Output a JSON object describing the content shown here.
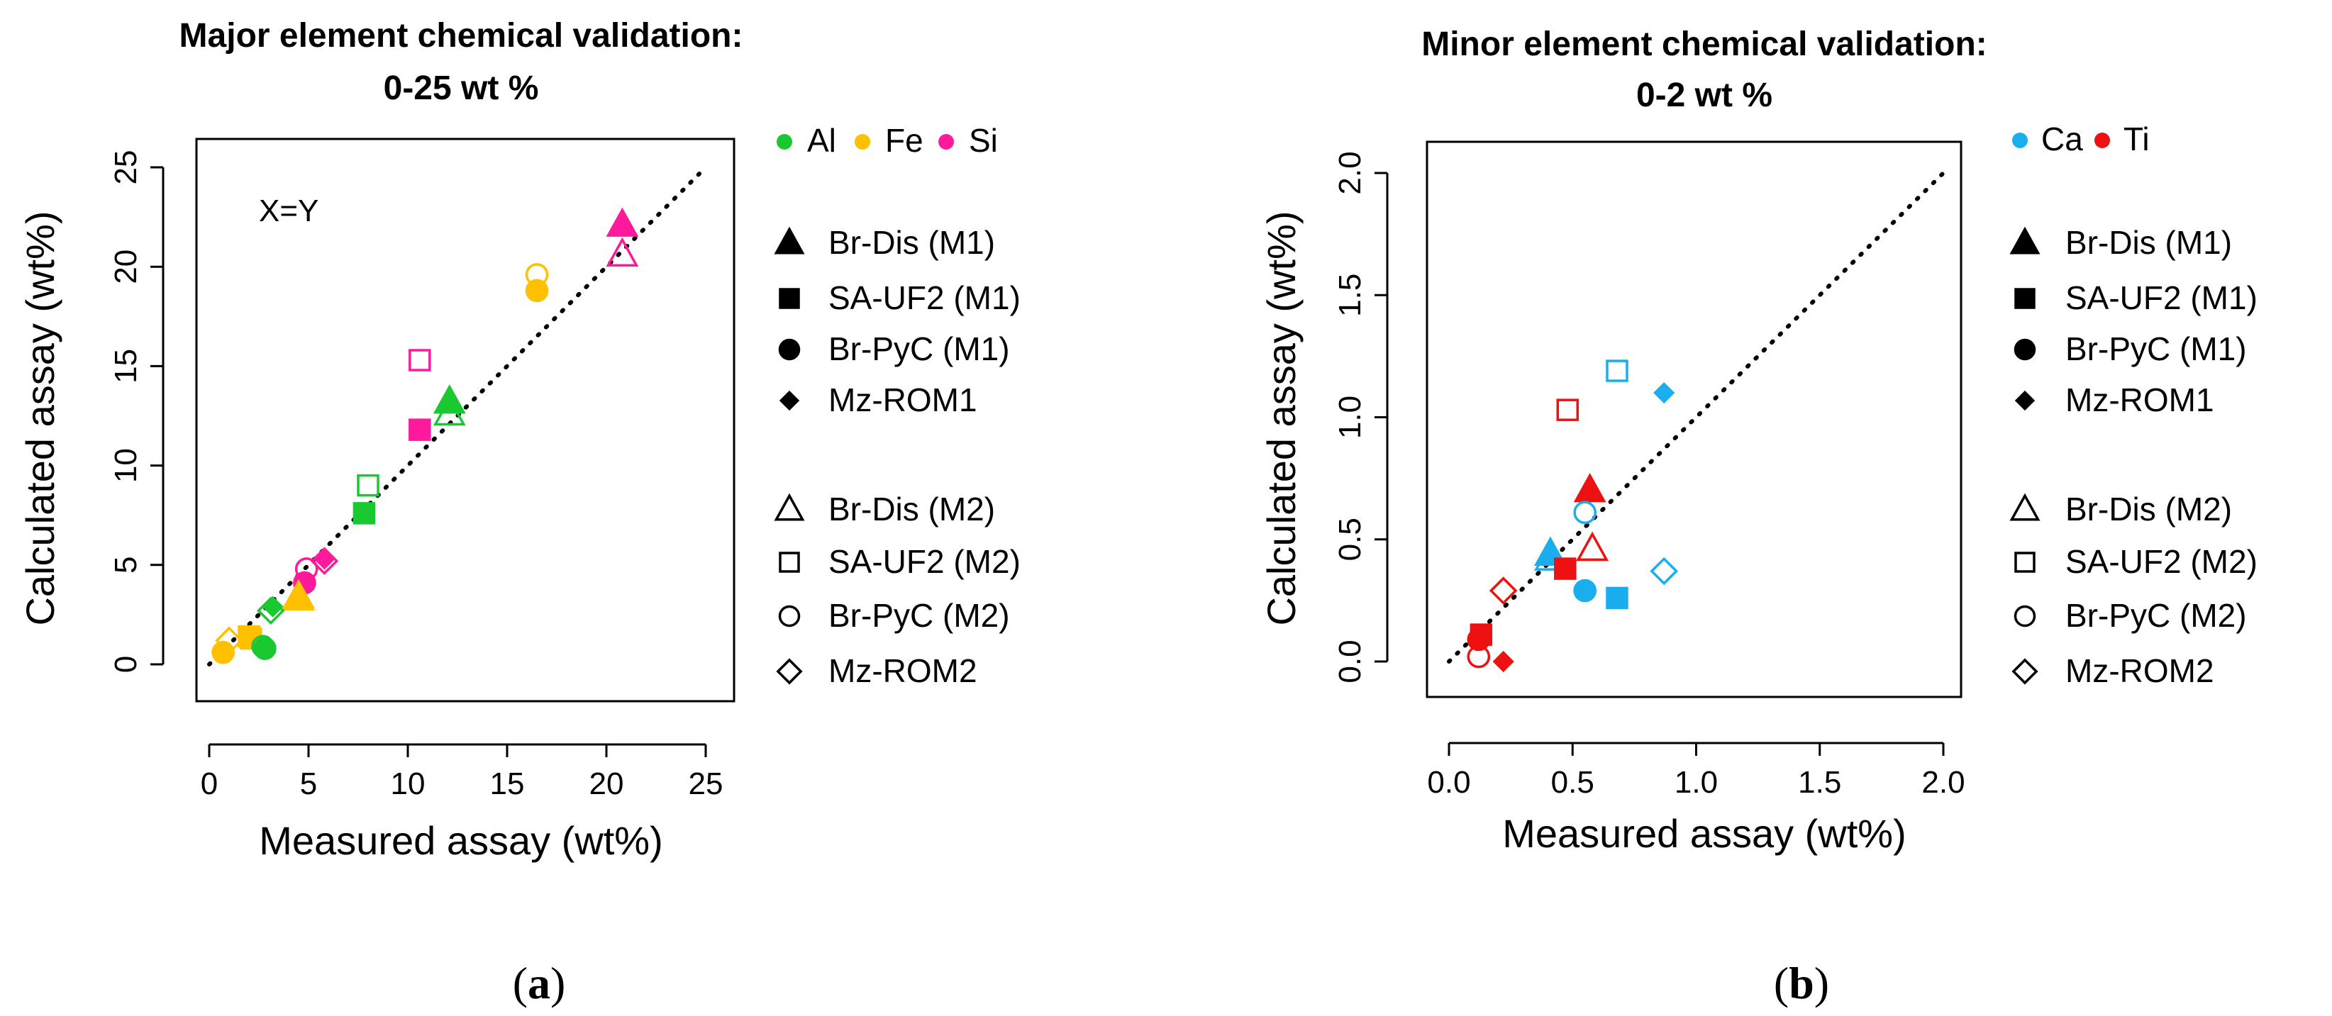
{
  "chart_data": [
    {
      "type": "scatter",
      "title": "Major element chemical validation:",
      "subtitle": "0-25 wt %",
      "xlabel": "Measured assay (wt%)",
      "ylabel": "Calculated assay (wt%)",
      "xlim": [
        0,
        25
      ],
      "ylim": [
        0,
        25
      ],
      "xticks": [
        "0",
        "5",
        "10",
        "15",
        "20",
        "25"
      ],
      "yticks": [
        "0",
        "5",
        "10",
        "15",
        "20",
        "25"
      ],
      "annotation": "X=Y",
      "caption_label": "a",
      "grid": false,
      "legend_position": "right",
      "element_legend": [
        {
          "name": "Al",
          "color": "#1ac832"
        },
        {
          "name": "Fe",
          "color": "#ffc000"
        },
        {
          "name": "Si",
          "color": "#ff1a9c"
        }
      ],
      "points": [
        {
          "element": "Si",
          "sample": "Br-Dis (M1)",
          "x": 20.8,
          "y": 22.1
        },
        {
          "element": "Si",
          "sample": "Br-Dis (M2)",
          "x": 20.8,
          "y": 20.6
        },
        {
          "element": "Fe",
          "sample": "Br-PyC (M2)",
          "x": 16.5,
          "y": 19.6
        },
        {
          "element": "Fe",
          "sample": "Br-PyC (M1)",
          "x": 16.5,
          "y": 18.8
        },
        {
          "element": "Si",
          "sample": "SA-UF2 (M2)",
          "x": 10.6,
          "y": 15.3
        },
        {
          "element": "Al",
          "sample": "Br-Dis (M1)",
          "x": 12.1,
          "y": 13.2
        },
        {
          "element": "Al",
          "sample": "Br-Dis (M2)",
          "x": 12.1,
          "y": 12.6
        },
        {
          "element": "Si",
          "sample": "SA-UF2 (M1)",
          "x": 10.6,
          "y": 11.8
        },
        {
          "element": "Al",
          "sample": "SA-UF2 (M2)",
          "x": 8.0,
          "y": 9.0
        },
        {
          "element": "Al",
          "sample": "SA-UF2 (M1)",
          "x": 7.8,
          "y": 7.6
        },
        {
          "element": "Si",
          "sample": "Mz-ROM1",
          "x": 5.8,
          "y": 5.3
        },
        {
          "element": "Si",
          "sample": "Mz-ROM2",
          "x": 5.8,
          "y": 5.2
        },
        {
          "element": "Si",
          "sample": "Br-PyC (M2)",
          "x": 4.9,
          "y": 4.8
        },
        {
          "element": "Si",
          "sample": "Br-PyC (M1)",
          "x": 4.8,
          "y": 4.1
        },
        {
          "element": "Fe",
          "sample": "Br-Dis (M1)",
          "x": 4.5,
          "y": 3.4
        },
        {
          "element": "Fe",
          "sample": "Br-Dis (M2)",
          "x": 4.5,
          "y": 3.3
        },
        {
          "element": "Al",
          "sample": "Mz-ROM1",
          "x": 3.2,
          "y": 2.9
        },
        {
          "element": "Al",
          "sample": "Mz-ROM2",
          "x": 3.1,
          "y": 2.7
        },
        {
          "element": "Fe",
          "sample": "SA-UF2 (M1)",
          "x": 2.0,
          "y": 1.4
        },
        {
          "element": "Fe",
          "sample": "SA-UF2 (M2)",
          "x": 2.1,
          "y": 1.3
        },
        {
          "element": "Fe",
          "sample": "Mz-ROM2",
          "x": 1.0,
          "y": 1.2
        },
        {
          "element": "Fe",
          "sample": "Br-PyC (M1)",
          "x": 0.7,
          "y": 0.6
        },
        {
          "element": "Al",
          "sample": "Br-PyC (M1)",
          "x": 2.8,
          "y": 0.8
        },
        {
          "element": "Al",
          "sample": "Br-PyC (M2)",
          "x": 2.7,
          "y": 0.9
        }
      ]
    },
    {
      "type": "scatter",
      "title": "Minor element chemical validation:",
      "subtitle": "0-2 wt %",
      "xlabel": "Measured assay (wt%)",
      "ylabel": "Calculated assay (wt%)",
      "xlim": [
        0,
        2
      ],
      "ylim": [
        0,
        2
      ],
      "xticks": [
        "0.0",
        "0.5",
        "1.0",
        "1.5",
        "2.0"
      ],
      "yticks": [
        "0.0",
        "0.5",
        "1.0",
        "1.5",
        "2.0"
      ],
      "caption_label": "b",
      "grid": false,
      "legend_position": "right",
      "element_legend": [
        {
          "name": "Ca",
          "color": "#1aaeee"
        },
        {
          "name": "Ti",
          "color": "#ee1111"
        }
      ],
      "points": [
        {
          "element": "Ca",
          "sample": "SA-UF2 (M2)",
          "x": 0.68,
          "y": 1.19
        },
        {
          "element": "Ca",
          "sample": "Mz-ROM1",
          "x": 0.87,
          "y": 1.1
        },
        {
          "element": "Ti",
          "sample": "SA-UF2 (M2)",
          "x": 0.48,
          "y": 1.03
        },
        {
          "element": "Ti",
          "sample": "Br-Dis (M1)",
          "x": 0.57,
          "y": 0.7
        },
        {
          "element": "Ca",
          "sample": "Br-PyC (M2)",
          "x": 0.55,
          "y": 0.61
        },
        {
          "element": "Ti",
          "sample": "Br-Dis (M2)",
          "x": 0.58,
          "y": 0.46
        },
        {
          "element": "Ca",
          "sample": "Br-Dis (M1)",
          "x": 0.41,
          "y": 0.44
        },
        {
          "element": "Ca",
          "sample": "Br-Dis (M2)",
          "x": 0.41,
          "y": 0.42
        },
        {
          "element": "Ti",
          "sample": "SA-UF2 (M1)",
          "x": 0.47,
          "y": 0.38
        },
        {
          "element": "Ca",
          "sample": "Mz-ROM2",
          "x": 0.87,
          "y": 0.37
        },
        {
          "element": "Ca",
          "sample": "Br-PyC (M1)",
          "x": 0.55,
          "y": 0.29
        },
        {
          "element": "Ti",
          "sample": "Mz-ROM2",
          "x": 0.22,
          "y": 0.29
        },
        {
          "element": "Ca",
          "sample": "SA-UF2 (M1)",
          "x": 0.68,
          "y": 0.26
        },
        {
          "element": "Ti",
          "sample": "SA-UF2 (M1)",
          "x": 0.13,
          "y": 0.11
        },
        {
          "element": "Ti",
          "sample": "Br-PyC (M1)",
          "x": 0.12,
          "y": 0.09
        },
        {
          "element": "Ti",
          "sample": "Br-PyC (M2)",
          "x": 0.12,
          "y": 0.02
        },
        {
          "element": "Ti",
          "sample": "Mz-ROM1",
          "x": 0.22,
          "y": 0.0
        }
      ]
    }
  ],
  "sample_legend": [
    {
      "label": "Br-Dis (M1)",
      "shape": "triangle",
      "filled": true
    },
    {
      "label": "SA-UF2 (M1)",
      "shape": "square",
      "filled": true
    },
    {
      "label": "Br-PyC (M1)",
      "shape": "circle",
      "filled": true
    },
    {
      "label": "Mz-ROM1",
      "shape": "diamond",
      "filled": true
    },
    {
      "label": "Br-Dis (M2)",
      "shape": "triangle",
      "filled": false
    },
    {
      "label": "SA-UF2 (M2)",
      "shape": "square",
      "filled": false
    },
    {
      "label": "Br-PyC (M2)",
      "shape": "circle",
      "filled": false
    },
    {
      "label": "Mz-ROM2",
      "shape": "diamond",
      "filled": false
    }
  ]
}
